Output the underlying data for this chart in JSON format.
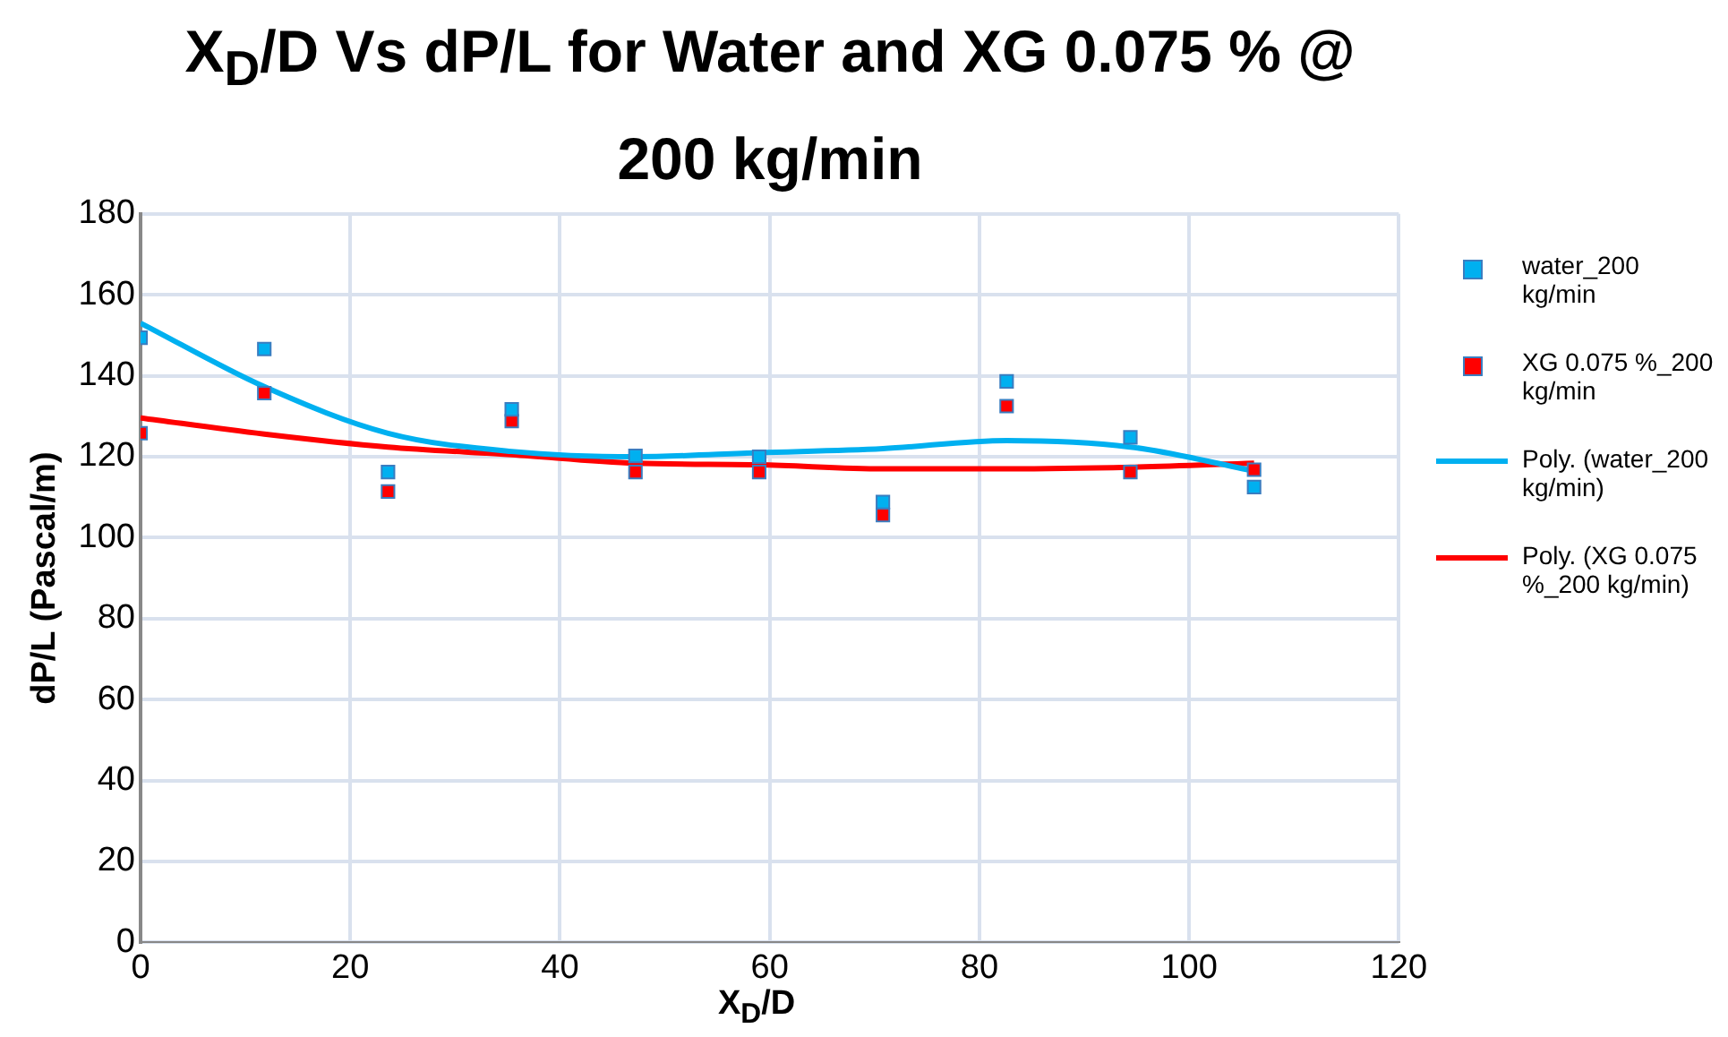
{
  "chart_data": {
    "type": "scatter",
    "title": "X$_{D}$/D Vs dP/L for Water and XG 0.075 % @ 200 kg/min",
    "xlabel": "X$_{D}$/D",
    "ylabel": "dP/L (Pascal/m)",
    "x": [
      0,
      11.8,
      23.6,
      35.4,
      47.2,
      59,
      70.8,
      82.6,
      94.4,
      106.2
    ],
    "series": [
      {
        "name": "water_200 kg/min",
        "color": "#00b0f0",
        "values": [
          149.4,
          146.6,
          116.2,
          131.7,
          120.2,
          120,
          108.8,
          138.6,
          124.8,
          112.5
        ]
      },
      {
        "name": "XG 0.075 %_200 kg/min",
        "color": "#ff0000",
        "values": [
          125.8,
          135.7,
          111.4,
          128.8,
          116.2,
          116.2,
          105.6,
          132.5,
          116.2,
          116.8
        ]
      },
      {
        "name": "Poly. (water_200 kg/min)",
        "type": "line",
        "color": "#00b0f0",
        "marker": "none",
        "x": [
          0,
          11.8,
          23.6,
          35.4,
          47.2,
          59,
          70.8,
          82.6,
          94.4,
          106.2
        ],
        "values": [
          153,
          137.3,
          125.8,
          121.3,
          120,
          121,
          122,
          124,
          122.4,
          116.5
        ]
      },
      {
        "name": "Poly. (XG 0.075 %_200 kg/min)",
        "type": "line",
        "color": "#ff0000",
        "marker": "none",
        "x": [
          0,
          11.8,
          23.6,
          35.4,
          47.2,
          59,
          70.8,
          82.6,
          94.4,
          106.2
        ],
        "values": [
          129.6,
          125.6,
          122.4,
          120.5,
          118.4,
          118,
          117,
          117,
          117.4,
          118.4
        ]
      }
    ],
    "marker": "square",
    "xlim": [
      0,
      120
    ],
    "xticks": [
      0,
      20,
      40,
      60,
      80,
      100,
      120
    ],
    "ylim": [
      0,
      180
    ],
    "yticks": [
      0,
      20,
      40,
      60,
      80,
      100,
      120,
      140,
      160,
      180
    ],
    "grid": true,
    "legend": "right"
  }
}
